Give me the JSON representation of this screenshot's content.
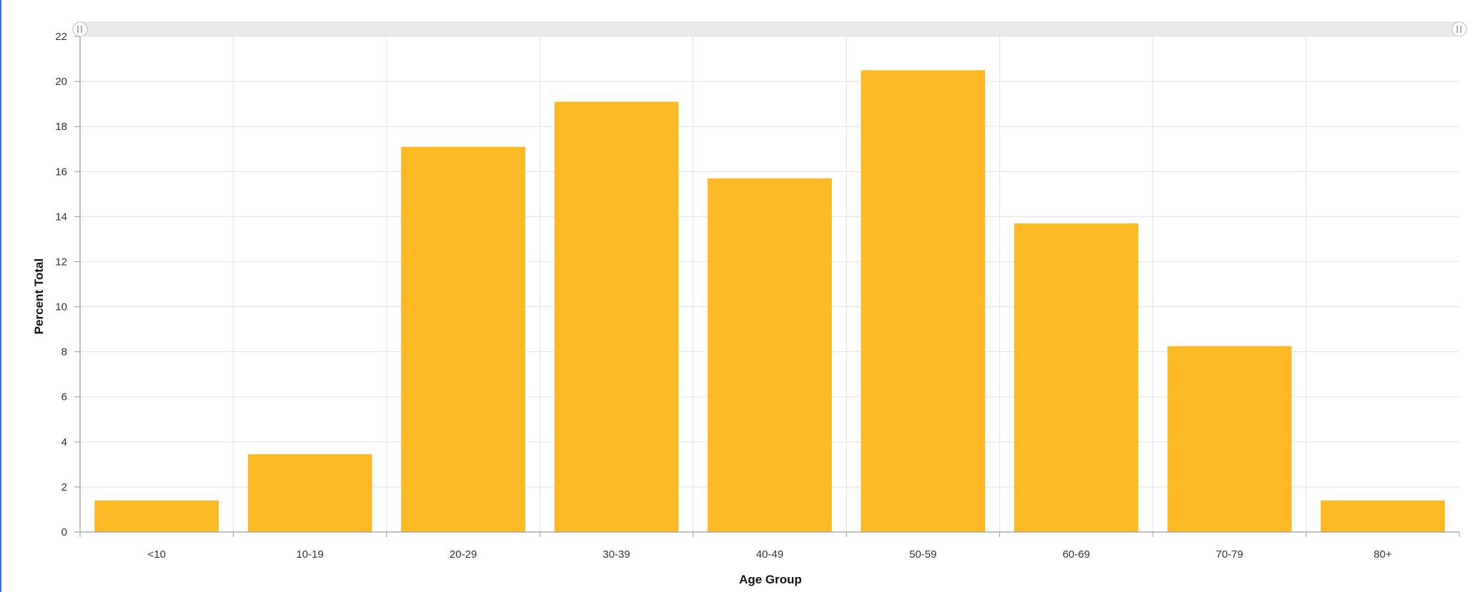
{
  "chart_data": {
    "type": "bar",
    "categories": [
      "<10",
      "10-19",
      "20-29",
      "30-39",
      "40-49",
      "50-59",
      "60-69",
      "70-79",
      "80+"
    ],
    "values": [
      1.4,
      3.45,
      17.1,
      19.1,
      15.7,
      20.5,
      13.7,
      8.25,
      1.4
    ],
    "xlabel": "Age Group",
    "ylabel": "Percent Total",
    "ylim": [
      0,
      22
    ],
    "yticks": [
      0,
      2,
      4,
      6,
      8,
      10,
      12,
      14,
      16,
      18,
      20,
      22
    ],
    "grid": true,
    "bar_color": "#FDB924",
    "grid_color": "#e3e3e3",
    "range_slider": true
  }
}
